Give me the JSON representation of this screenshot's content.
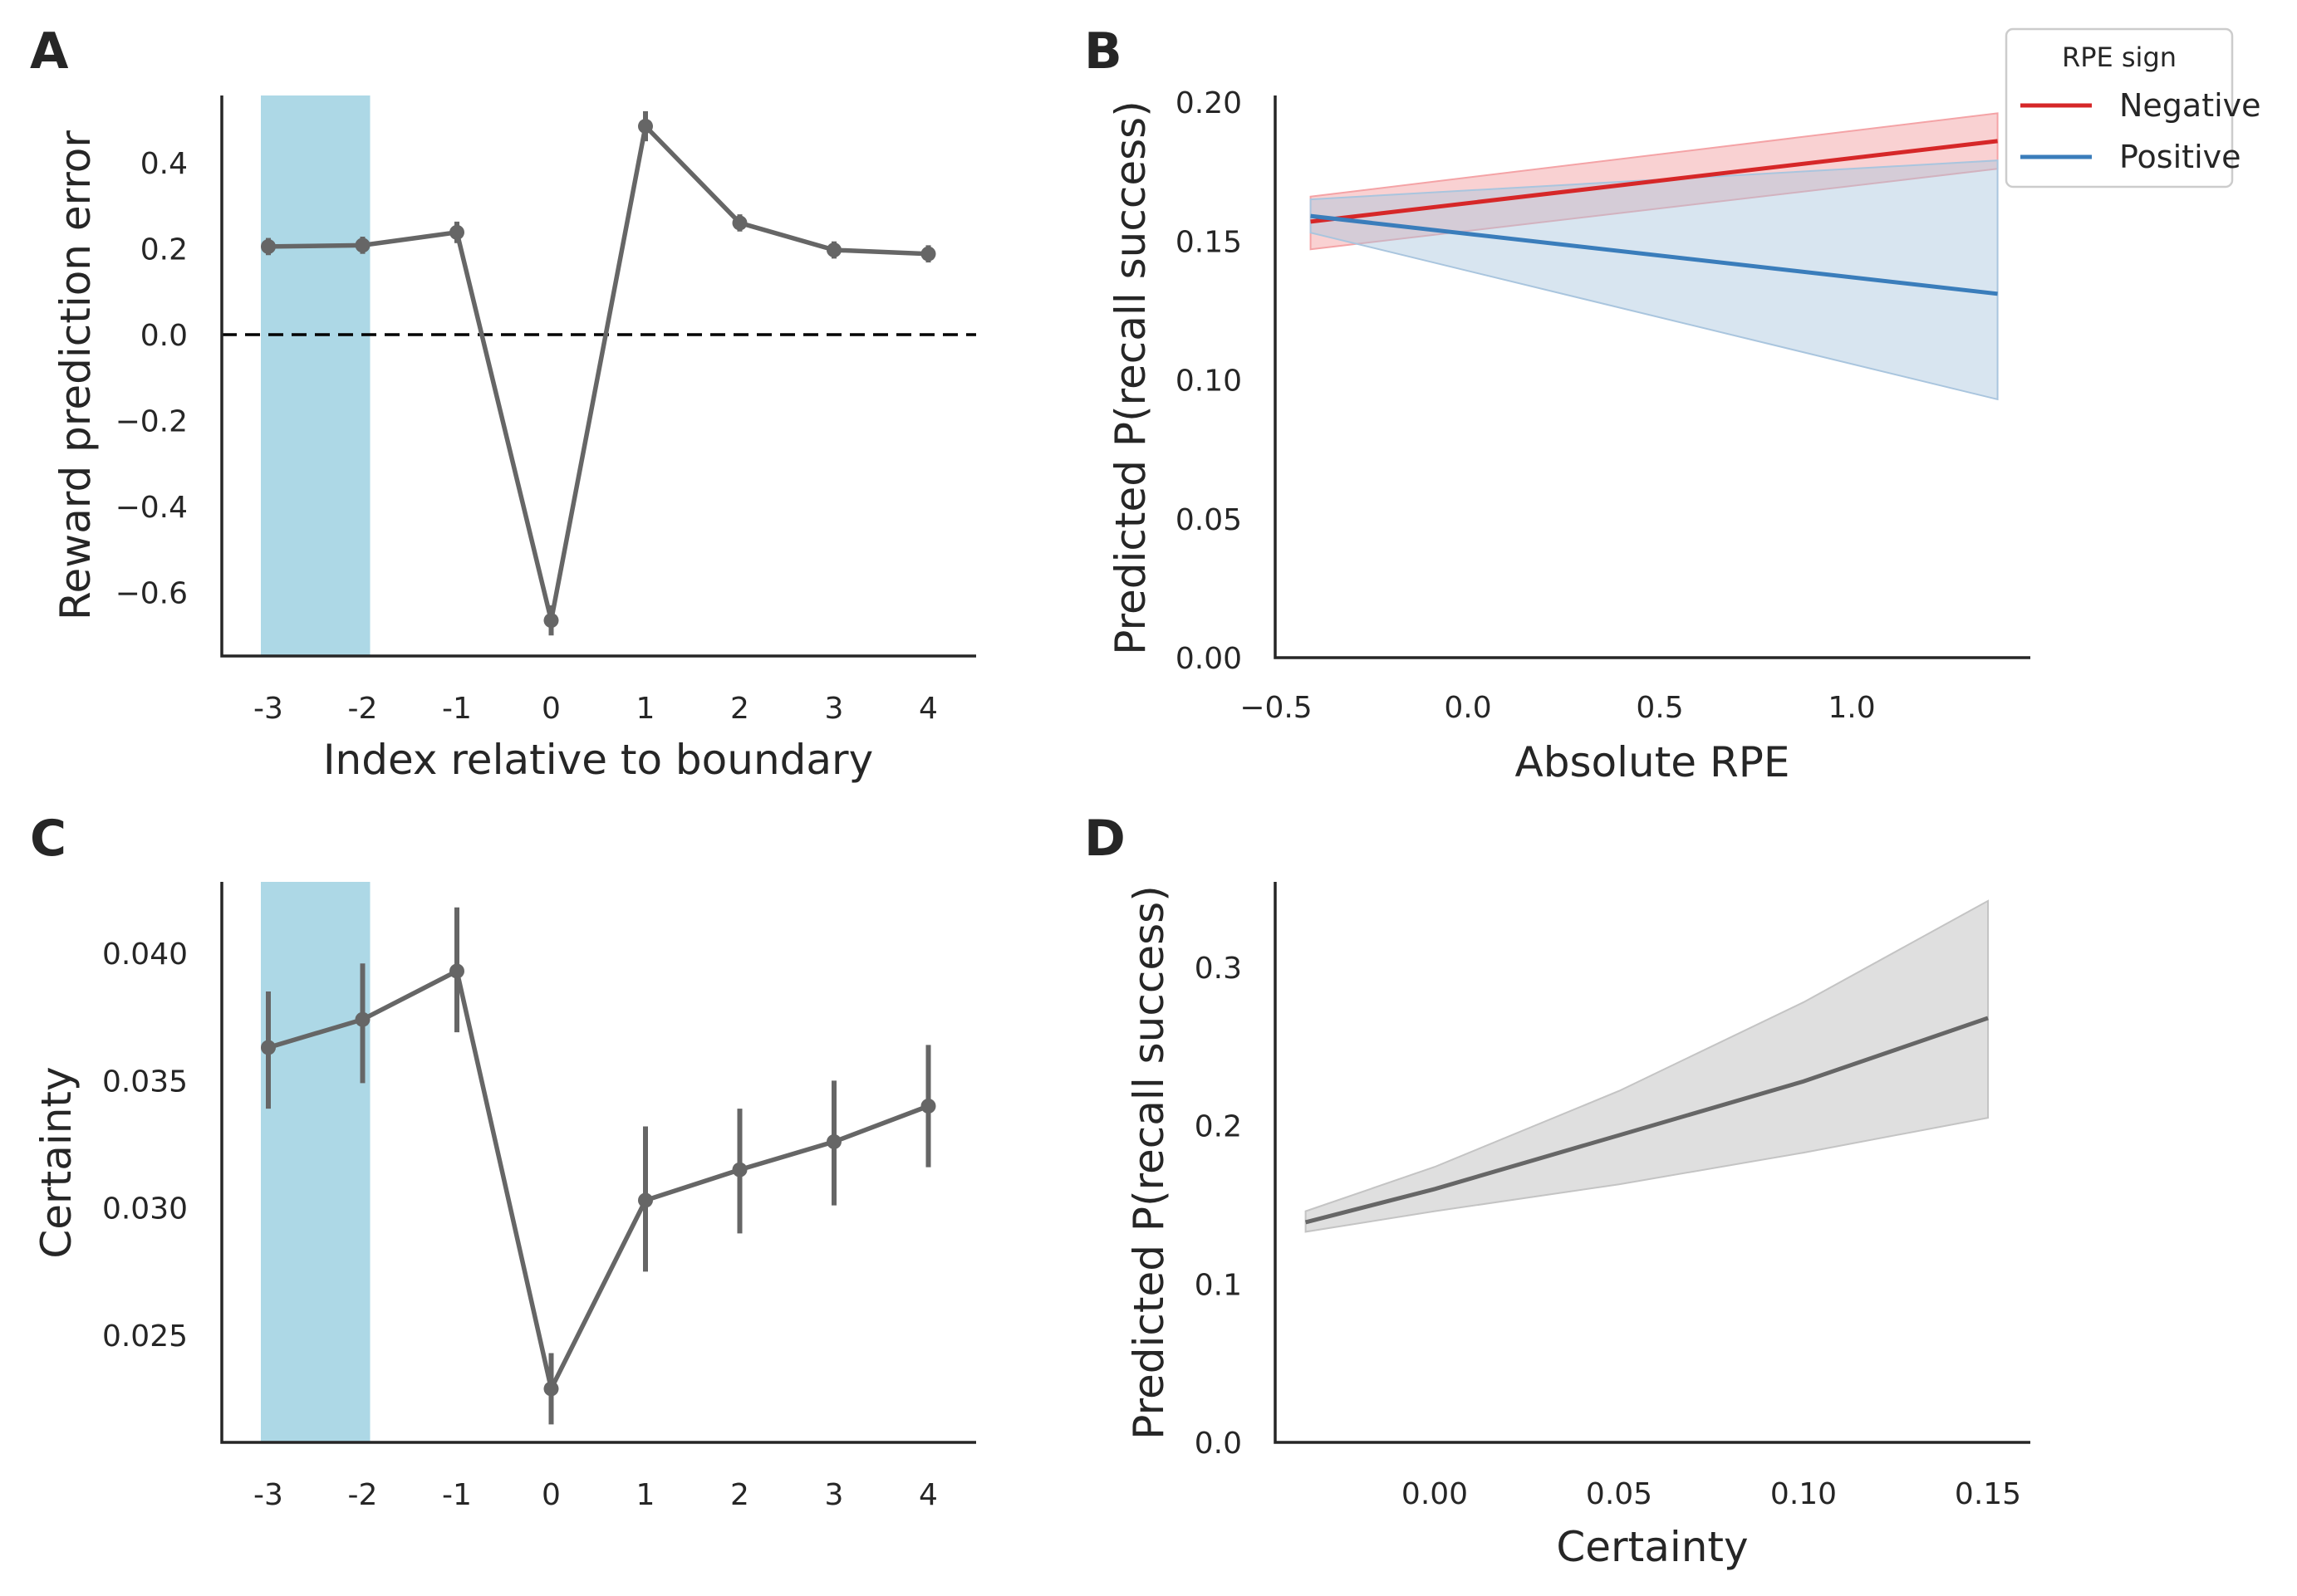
{
  "colors": {
    "series_gray": "#666666",
    "negative_red": "#d62728",
    "positive_blue": "#3a7dbb",
    "ci_red": "#f4a3a6",
    "ci_blue": "#a9c5de",
    "ci_gray": "#c4c4c4",
    "highlight": "#add8e6",
    "axis": "#262626"
  },
  "chart_data": [
    {
      "panel": "A",
      "type": "line",
      "xlabel": "Index relative to boundary",
      "ylabel": "Reward prediction error",
      "categories": [
        "-3",
        "-2",
        "-1",
        "0",
        "1",
        "2",
        "3",
        "4"
      ],
      "values": [
        0.205,
        0.208,
        0.238,
        -0.665,
        0.485,
        0.26,
        0.197,
        0.188
      ],
      "errors": [
        0.02,
        0.02,
        0.025,
        0.035,
        0.035,
        0.02,
        0.02,
        0.02
      ],
      "ylim": [
        -0.75,
        0.55
      ],
      "yticks": [
        "0.4",
        "0.2",
        "0.0",
        "−0.2",
        "−0.4",
        "−0.6"
      ],
      "ytick_values": [
        0.4,
        0.2,
        0.0,
        -0.2,
        -0.4,
        -0.6
      ],
      "reference_line": 0.0,
      "highlight_span": [
        0,
        1
      ],
      "grid": false
    },
    {
      "panel": "B",
      "type": "line",
      "xlabel": "Absolute RPE",
      "ylabel": "Predicted P(recall success)",
      "xlim": [
        -0.5,
        1.48
      ],
      "ylim": [
        0.0,
        0.2
      ],
      "xticks": [
        "−0.5",
        "0.0",
        "0.5",
        "1.0"
      ],
      "xtick_values": [
        -0.5,
        0.0,
        0.5,
        1.0
      ],
      "yticks": [
        "0.00",
        "0.05",
        "0.10",
        "0.15",
        "0.20"
      ],
      "ytick_values": [
        0.0,
        0.05,
        0.1,
        0.15,
        0.2
      ],
      "legend": {
        "title": "RPE sign",
        "position": "top-right"
      },
      "series": [
        {
          "name": "Negative",
          "x": [
            -0.41,
            1.38
          ],
          "y": [
            0.157,
            0.186
          ],
          "ci_low": [
            0.147,
            0.176
          ],
          "ci_high": [
            0.166,
            0.196
          ]
        },
        {
          "name": "Positive",
          "x": [
            -0.41,
            1.38
          ],
          "y": [
            0.159,
            0.131
          ],
          "ci_low": [
            0.153,
            0.093
          ],
          "ci_high": [
            0.165,
            0.179
          ]
        }
      ],
      "grid": false
    },
    {
      "panel": "C",
      "type": "line",
      "xlabel": "",
      "ylabel": "Certainty",
      "categories": [
        "-3",
        "-2",
        "-1",
        "0",
        "1",
        "2",
        "3",
        "4"
      ],
      "values": [
        0.0363,
        0.0374,
        0.0393,
        0.0229,
        0.0303,
        0.0315,
        0.0326,
        0.034
      ],
      "ci_low": [
        0.0339,
        0.0349,
        0.0369,
        0.0215,
        0.0275,
        0.029,
        0.0301,
        0.0316
      ],
      "ci_high": [
        0.0385,
        0.0396,
        0.0418,
        0.0243,
        0.0332,
        0.0339,
        0.035,
        0.0364
      ],
      "ylim": [
        0.0205,
        0.0428
      ],
      "yticks": [
        "0.040",
        "0.035",
        "0.030",
        "0.025"
      ],
      "ytick_values": [
        0.04,
        0.035,
        0.03,
        0.025
      ],
      "highlight_span": [
        0,
        1
      ],
      "grid": false
    },
    {
      "panel": "D",
      "type": "line",
      "xlabel": "Certainty",
      "ylabel": "Predicted P(recall success)",
      "xlim": [
        -0.042,
        0.16
      ],
      "ylim": [
        0.0,
        0.35
      ],
      "xticks": [
        "0.00",
        "0.05",
        "0.10",
        "0.15"
      ],
      "xtick_values": [
        0.0,
        0.05,
        0.1,
        0.15
      ],
      "yticks": [
        "0.0",
        "0.1",
        "0.2",
        "0.3"
      ],
      "ytick_values": [
        0.0,
        0.1,
        0.2,
        0.3
      ],
      "x": [
        -0.035,
        0.0,
        0.05,
        0.1,
        0.15
      ],
      "y": [
        0.139,
        0.16,
        0.194,
        0.228,
        0.268
      ],
      "ci_low": [
        0.133,
        0.146,
        0.163,
        0.183,
        0.205
      ],
      "ci_high": [
        0.146,
        0.174,
        0.222,
        0.278,
        0.342
      ],
      "grid": false
    }
  ]
}
